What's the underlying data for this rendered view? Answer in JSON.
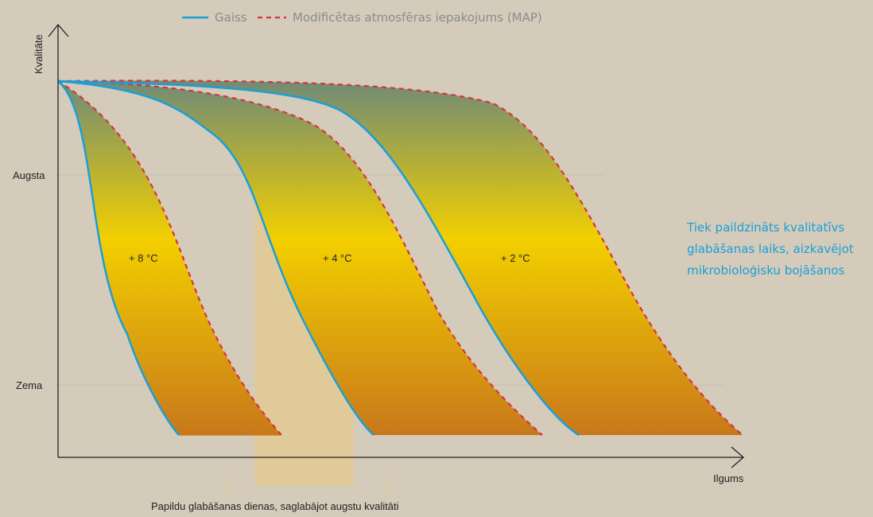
{
  "colors": {
    "background": "#d4cbbb",
    "air_line": "#1a9fd6",
    "map_line": "#d8333a",
    "gradient_top": "#6f8a78",
    "gradient_mid": "#f2cf00",
    "gradient_bottom": "#c8781a",
    "extension_band": "#e5c98f",
    "annotation": "#1a9fd6"
  },
  "legend": {
    "air": "Gaiss",
    "map": "Modificētas atmosfēras iepakojums (MAP)"
  },
  "note": {
    "lines": [
      "Tiek paildzināts kvalitatīvs",
      "glabāšanas laiks, aizkavējot",
      "mikrobioloģisku bojāšanos"
    ]
  },
  "caption": "Papildu glabāšanas dienas, saglabājot augstu kvalitāti",
  "chart_data": {
    "type": "area",
    "title": "",
    "xlabel": "Ilgums",
    "ylabel": "Kvalitāte",
    "y_ticks": [
      "Augsta",
      "Zema"
    ],
    "x_ticks": [],
    "grid": true,
    "legend_position": "top-center",
    "series": [
      {
        "name": "Gaiss",
        "style": "solid"
      },
      {
        "name": "Modificētas atmosfēras iepakojums (MAP)",
        "style": "dashed"
      }
    ],
    "bands": [
      {
        "label": "+ 8 °C"
      },
      {
        "label": "+ 4 °C"
      },
      {
        "label": "+ 2 °C"
      }
    ]
  }
}
